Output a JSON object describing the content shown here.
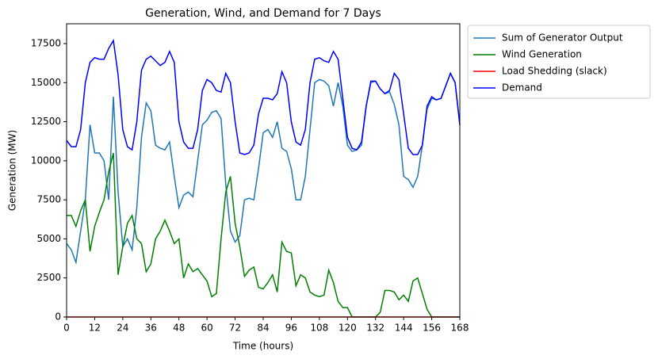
{
  "chart_data": {
    "type": "line",
    "title": "Generation, Wind, and Demand for 7 Days",
    "x_label": "Time (hours)",
    "y_label": "Generation (MW)",
    "x": [
      0,
      2,
      4,
      6,
      8,
      10,
      12,
      14,
      16,
      18,
      20,
      22,
      24,
      26,
      28,
      30,
      32,
      34,
      36,
      38,
      40,
      42,
      44,
      46,
      48,
      50,
      52,
      54,
      56,
      58,
      60,
      62,
      64,
      66,
      68,
      70,
      72,
      74,
      76,
      78,
      80,
      82,
      84,
      86,
      88,
      90,
      92,
      94,
      96,
      98,
      100,
      102,
      104,
      106,
      108,
      110,
      112,
      114,
      116,
      118,
      120,
      122,
      124,
      126,
      128,
      130,
      132,
      134,
      136,
      138,
      140,
      142,
      144,
      146,
      148,
      150,
      152,
      154,
      156,
      158,
      160,
      162,
      164,
      166,
      168
    ],
    "series": [
      {
        "name": "Sum of Generator Output",
        "color": "#1f77b4",
        "values": [
          4700,
          4300,
          3500,
          5500,
          7500,
          12300,
          10500,
          10500,
          10000,
          7500,
          14100,
          8000,
          4500,
          5000,
          4300,
          7000,
          11500,
          13700,
          13200,
          11000,
          10800,
          10700,
          11200,
          9000,
          7000,
          7800,
          8000,
          7700,
          10000,
          12300,
          12600,
          13100,
          13200,
          12700,
          8500,
          5500,
          4800,
          5200,
          7500,
          7600,
          7500,
          9500,
          11800,
          12000,
          11500,
          12500,
          10800,
          10600,
          9500,
          7500,
          7500,
          9000,
          12000,
          15000,
          15200,
          15100,
          14800,
          13500,
          15000,
          13500,
          11000,
          10600,
          10700,
          11000,
          13500,
          15000,
          15100,
          14600,
          14300,
          14400,
          13600,
          12300,
          9000,
          8800,
          8300,
          9000,
          11000,
          13300,
          14000,
          13900,
          14000,
          14800,
          15600,
          15000,
          12300
        ]
      },
      {
        "name": "Wind Generation",
        "color": "#008000",
        "values": [
          6500,
          6500,
          5800,
          6800,
          7500,
          4200,
          5800,
          6700,
          7500,
          9300,
          10500,
          2700,
          4500,
          6000,
          6500,
          5000,
          4700,
          2900,
          3400,
          5000,
          5500,
          6200,
          5500,
          4700,
          5000,
          2500,
          3400,
          2900,
          3100,
          2700,
          2300,
          1300,
          1500,
          5000,
          8000,
          9000,
          6000,
          4500,
          2600,
          3000,
          3200,
          1900,
          1800,
          2200,
          2700,
          1600,
          4800,
          4200,
          4100,
          2000,
          2700,
          2500,
          1600,
          1400,
          1300,
          1400,
          3000,
          2200,
          1000,
          600,
          600,
          0,
          0,
          0,
          0,
          0,
          0,
          300,
          1700,
          1700,
          1600,
          1100,
          1400,
          1000,
          2300,
          2500,
          1500,
          500,
          0,
          0,
          0,
          0,
          0,
          0,
          0
        ]
      },
      {
        "name": "Load Shedding (slack)",
        "color": "#ff0000",
        "values": [
          0,
          0,
          0,
          0,
          0,
          0,
          0,
          0,
          0,
          0,
          0,
          0,
          0,
          0,
          0,
          0,
          0,
          0,
          0,
          0,
          0,
          0,
          0,
          0,
          0,
          0,
          0,
          0,
          0,
          0,
          0,
          0,
          0,
          0,
          0,
          0,
          0,
          0,
          0,
          0,
          0,
          0,
          0,
          0,
          0,
          0,
          0,
          0,
          0,
          0,
          0,
          0,
          0,
          0,
          0,
          0,
          0,
          0,
          0,
          0,
          0,
          0,
          0,
          0,
          0,
          0,
          0,
          0,
          0,
          0,
          0,
          0,
          0,
          0,
          0,
          0,
          0,
          0,
          0,
          0,
          0,
          0,
          0,
          0,
          0
        ]
      },
      {
        "name": "Demand",
        "color": "#0000ff",
        "values": [
          11300,
          10900,
          10900,
          12000,
          15000,
          16300,
          16600,
          16500,
          16500,
          17200,
          17700,
          15500,
          12000,
          10900,
          10700,
          12500,
          15800,
          16500,
          16700,
          16400,
          16100,
          16300,
          17000,
          16300,
          12500,
          11200,
          10800,
          10800,
          12000,
          14500,
          15200,
          15000,
          14500,
          14400,
          15600,
          15000,
          12500,
          10500,
          10400,
          10500,
          11000,
          13000,
          14000,
          14000,
          13900,
          14300,
          15700,
          15000,
          12500,
          11200,
          11000,
          12000,
          15000,
          16500,
          16600,
          16400,
          16300,
          17000,
          16500,
          14000,
          11500,
          10800,
          10700,
          11200,
          13500,
          15100,
          15100,
          14600,
          14300,
          14500,
          15600,
          15200,
          13000,
          10800,
          10400,
          10400,
          11000,
          13500,
          14100,
          13900,
          14000,
          14800,
          15600,
          15000,
          12300
        ]
      }
    ],
    "xlim": [
      0,
      168
    ],
    "xticks": [
      0,
      12,
      24,
      36,
      48,
      60,
      72,
      84,
      96,
      108,
      120,
      132,
      144,
      156,
      168
    ],
    "ylim": [
      0,
      18770
    ],
    "yticks": [
      0,
      2500,
      5000,
      7500,
      10000,
      12500,
      15000,
      17500
    ],
    "legend": "outside upper right",
    "grid": false
  }
}
